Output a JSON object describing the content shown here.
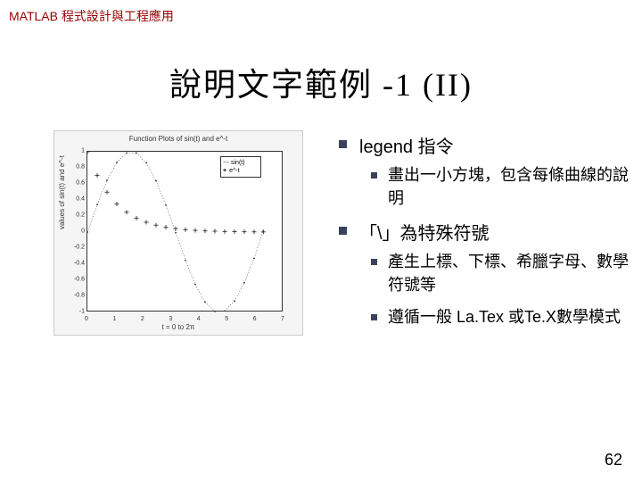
{
  "header": "MATLAB 程式設計與工程應用",
  "title": "說明文字範例 -1 (II)",
  "bullets": {
    "b1": {
      "label": "legend 指令"
    },
    "b1_1": {
      "label": "畫出一小方塊，包含每條曲線的說明"
    },
    "b2": {
      "label": "「\\」為特殊符號"
    },
    "b2_1": {
      "label": "產生上標、下標、希臘字母、數學符號等"
    },
    "b2_2": {
      "label": "遵循一般 La.Tex 或Te.X數學模式"
    }
  },
  "page_number": "62",
  "chart": {
    "type": "line",
    "title": "Function Plots of sin(t) and e^-t",
    "xlabel": "t = 0 to 2π",
    "ylabel": "values of sin(t) and e^-t",
    "legend": {
      "items": [
        "sin(t)",
        "e^-t"
      ],
      "markers": [
        "dotted",
        "plus"
      ]
    },
    "xlim": [
      0,
      7
    ],
    "ylim": [
      -1,
      1
    ],
    "xticks": [
      0,
      1,
      2,
      3,
      4,
      5,
      6,
      7
    ],
    "yticks": [
      -1,
      -0.8,
      -0.6,
      -0.4,
      -0.2,
      0,
      0.2,
      0.4,
      0.6,
      0.8,
      1
    ],
    "series": [
      {
        "name": "sin(t)",
        "marker": "dot",
        "color": "#333333",
        "x": [
          0,
          0.35,
          0.7,
          1.05,
          1.4,
          1.75,
          2.1,
          2.45,
          2.8,
          3.15,
          3.5,
          3.85,
          4.2,
          4.55,
          4.9,
          5.25,
          5.6,
          5.95,
          6.28
        ],
        "y": [
          0,
          0.343,
          0.644,
          0.867,
          0.985,
          0.984,
          0.863,
          0.638,
          0.335,
          -0.008,
          -0.351,
          -0.651,
          -0.872,
          -0.987,
          -0.982,
          -0.859,
          -0.631,
          -0.327,
          0.016
        ]
      },
      {
        "name": "e^-t",
        "marker": "plus",
        "color": "#333333",
        "x": [
          0,
          0.35,
          0.7,
          1.05,
          1.4,
          1.75,
          2.1,
          2.45,
          2.8,
          3.15,
          3.5,
          3.85,
          4.2,
          4.55,
          4.9,
          5.25,
          5.6,
          5.95,
          6.28
        ],
        "y": [
          1,
          0.705,
          0.497,
          0.35,
          0.247,
          0.174,
          0.122,
          0.086,
          0.061,
          0.043,
          0.03,
          0.021,
          0.015,
          0.011,
          0.007,
          0.005,
          0.004,
          0.003,
          0.002
        ]
      }
    ],
    "background_color": "#ffffff",
    "frame_background": "#f5f5f5",
    "axis_color": "#333333",
    "font_size_axis": 8
  },
  "colors": {
    "header_text": "#990000",
    "bullet_square": "#39415c",
    "body_text": "#000000"
  }
}
